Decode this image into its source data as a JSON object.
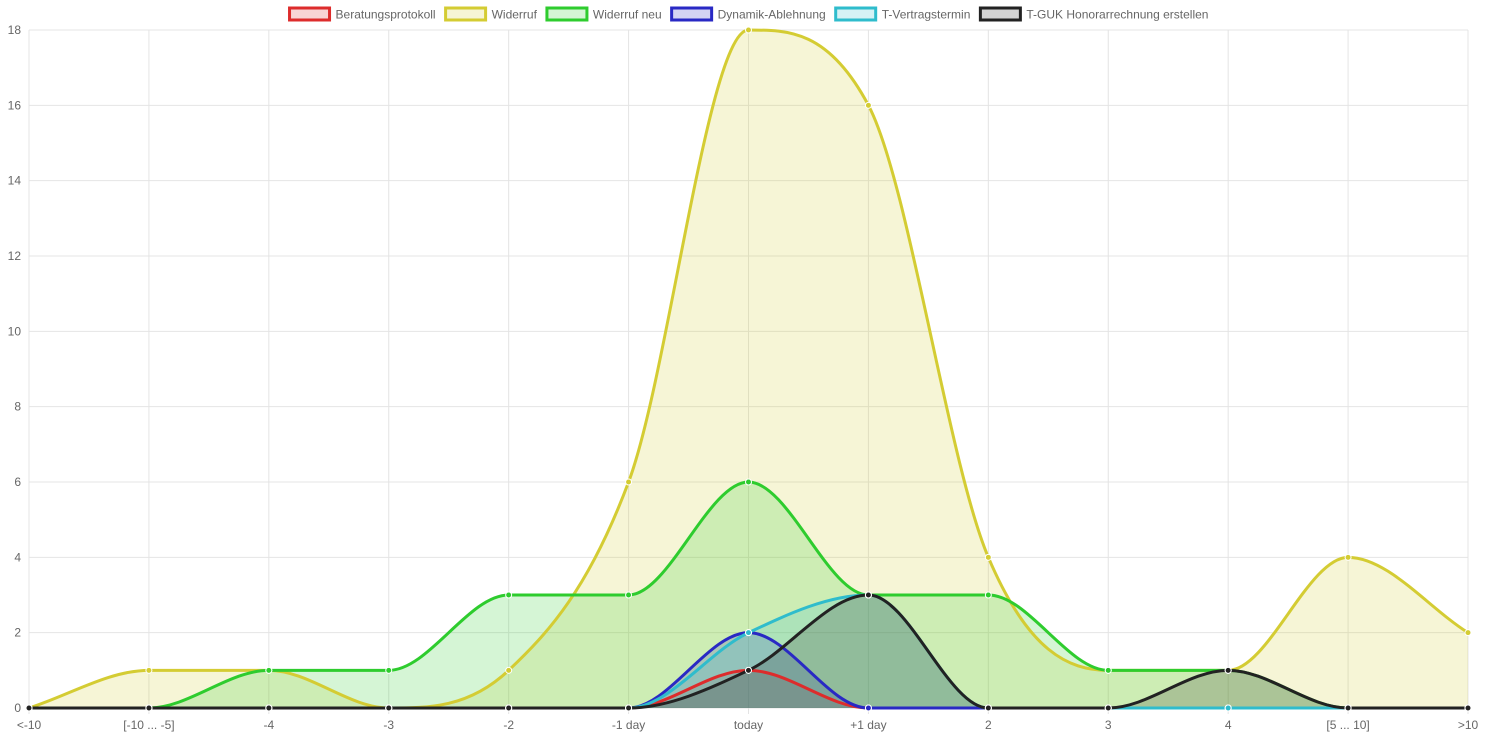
{
  "chart_data": {
    "type": "area",
    "title": "",
    "xlabel": "",
    "ylabel": "",
    "categories": [
      "<-10",
      "[-10 ... -5]",
      "-4",
      "-3",
      "-2",
      "-1 day",
      "today",
      "+1 day",
      "2",
      "3",
      "4",
      "[5 ... 10]",
      ">10"
    ],
    "ylim": [
      0,
      18
    ],
    "yticks": [
      "0",
      "2",
      "4",
      "6",
      "8",
      "10",
      "12",
      "14",
      "16",
      "18"
    ],
    "grid": true,
    "legend_position": "top",
    "series": [
      {
        "name": "Beratungsprotokoll",
        "color": "#dd2c2c",
        "fill": "rgba(221,44,44,0.2)",
        "values": [
          0,
          0,
          0,
          0,
          0,
          0,
          1,
          0,
          0,
          0,
          0,
          0,
          0
        ]
      },
      {
        "name": "Widerruf",
        "color": "#d4cc33",
        "fill": "rgba(212,204,51,0.2)",
        "values": [
          0,
          1,
          1,
          0,
          1,
          6,
          18,
          16,
          4,
          1,
          1,
          4,
          2
        ]
      },
      {
        "name": "Widerruf neu",
        "color": "#2ecc2e",
        "fill": "rgba(46,204,46,0.2)",
        "values": [
          0,
          0,
          1,
          1,
          3,
          3,
          6,
          3,
          3,
          1,
          1,
          0,
          0
        ]
      },
      {
        "name": "Dynamik-Ablehnung",
        "color": "#2929c4",
        "fill": "rgba(41,41,196,0.2)",
        "values": [
          0,
          0,
          0,
          0,
          0,
          0,
          2,
          0,
          0,
          0,
          0,
          0,
          0
        ]
      },
      {
        "name": "T-Vertragstermin",
        "color": "#2fbccc",
        "fill": "rgba(47,188,204,0.2)",
        "values": [
          0,
          0,
          0,
          0,
          0,
          0,
          2,
          3,
          0,
          0,
          0,
          0,
          0
        ]
      },
      {
        "name": "T-GUK Honorarrechnung erstellen",
        "color": "#222222",
        "fill": "rgba(34,34,34,0.2)",
        "values": [
          0,
          0,
          0,
          0,
          0,
          0,
          1,
          3,
          0,
          0,
          1,
          0,
          0
        ]
      }
    ]
  }
}
